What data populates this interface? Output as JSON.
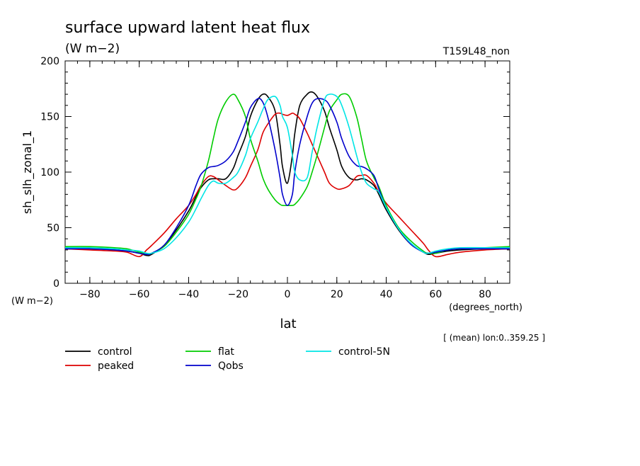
{
  "chart_data": {
    "type": "line",
    "title": "surface upward latent heat flux",
    "subtitle": "(W m−2)",
    "run_label": "T159L48_non",
    "xlabel": "lat",
    "x_units": "(degrees_north)",
    "ylabel": "sh_slh_zonal_1",
    "y_units": "(W m−2)",
    "note": "[ (mean) lon:0..359.25 ]",
    "xlim": [
      -90,
      90
    ],
    "ylim": [
      0,
      200
    ],
    "xticks": [
      -80,
      -60,
      -40,
      -20,
      0,
      20,
      40,
      60,
      80
    ],
    "yticks": [
      0,
      50,
      100,
      150,
      200
    ],
    "xtick_labels": [
      "−80",
      "−60",
      "−40",
      "−20",
      "0",
      "20",
      "40",
      "60",
      "80"
    ],
    "ytick_labels": [
      "0",
      "50",
      "100",
      "150",
      "200"
    ],
    "grid": false,
    "legend_position": "bottom",
    "x": [
      -90,
      -80,
      -70,
      -65,
      -60,
      -57,
      -55,
      -50,
      -45,
      -40,
      -37,
      -35,
      -32,
      -30,
      -28,
      -25,
      -22,
      -20,
      -17,
      -15,
      -12,
      -10,
      -8,
      -5,
      -3,
      -2,
      0,
      2,
      3,
      5,
      8,
      10,
      12,
      15,
      17,
      20,
      22,
      25,
      28,
      30,
      32,
      35,
      37,
      40,
      45,
      50,
      55,
      57,
      60,
      65,
      70,
      80,
      90
    ],
    "series": [
      {
        "name": "control",
        "color": "#000000",
        "values": [
          31,
          31,
          30,
          29,
          27,
          25,
          26,
          34,
          48,
          65,
          78,
          86,
          93,
          94,
          94,
          94,
          103,
          115,
          132,
          150,
          165,
          170,
          168,
          155,
          125,
          105,
          90,
          115,
          135,
          160,
          170,
          172,
          168,
          155,
          140,
          120,
          105,
          95,
          93,
          94,
          93,
          88,
          80,
          66,
          48,
          35,
          28,
          26,
          27,
          29,
          30,
          31,
          31
        ]
      },
      {
        "name": "peaked",
        "color": "#dd0000",
        "values": [
          31,
          30,
          29,
          28,
          24,
          30,
          34,
          45,
          58,
          70,
          80,
          88,
          96,
          96,
          93,
          88,
          84,
          86,
          95,
          105,
          120,
          135,
          143,
          152,
          153,
          152,
          151,
          153,
          152,
          148,
          135,
          125,
          115,
          100,
          90,
          85,
          85,
          88,
          96,
          97,
          97,
          90,
          82,
          72,
          60,
          48,
          36,
          30,
          24,
          26,
          28,
          30,
          31
        ]
      },
      {
        "name": "flat",
        "color": "#00cc00",
        "values": [
          33,
          33,
          32,
          31,
          28,
          27,
          27,
          33,
          46,
          62,
          76,
          87,
          110,
          130,
          148,
          163,
          170,
          165,
          150,
          130,
          110,
          95,
          85,
          75,
          71,
          70,
          70,
          70,
          71,
          76,
          87,
          100,
          115,
          140,
          155,
          165,
          170,
          168,
          150,
          130,
          110,
          95,
          87,
          70,
          50,
          38,
          29,
          27,
          27,
          30,
          31,
          32,
          33
        ]
      },
      {
        "name": "Qobs",
        "color": "#0000cc",
        "values": [
          31,
          31,
          30,
          29,
          27,
          26,
          27,
          34,
          50,
          70,
          88,
          98,
          104,
          105,
          106,
          110,
          118,
          128,
          145,
          158,
          166,
          163,
          150,
          120,
          95,
          80,
          70,
          80,
          100,
          125,
          150,
          162,
          166,
          165,
          160,
          145,
          130,
          114,
          106,
          105,
          103,
          97,
          85,
          68,
          49,
          35,
          28,
          27,
          28,
          30,
          31,
          31,
          31
        ]
      },
      {
        "name": "control-5N",
        "color": "#00e5e5",
        "values": [
          32,
          32,
          31,
          30,
          29,
          27,
          27,
          31,
          41,
          55,
          67,
          76,
          88,
          92,
          90,
          90,
          95,
          100,
          115,
          130,
          145,
          156,
          165,
          168,
          160,
          150,
          140,
          115,
          100,
          93,
          95,
          118,
          140,
          165,
          170,
          168,
          160,
          140,
          115,
          100,
          90,
          85,
          82,
          68,
          49,
          36,
          28,
          27,
          29,
          31,
          32,
          32,
          32
        ]
      }
    ]
  }
}
